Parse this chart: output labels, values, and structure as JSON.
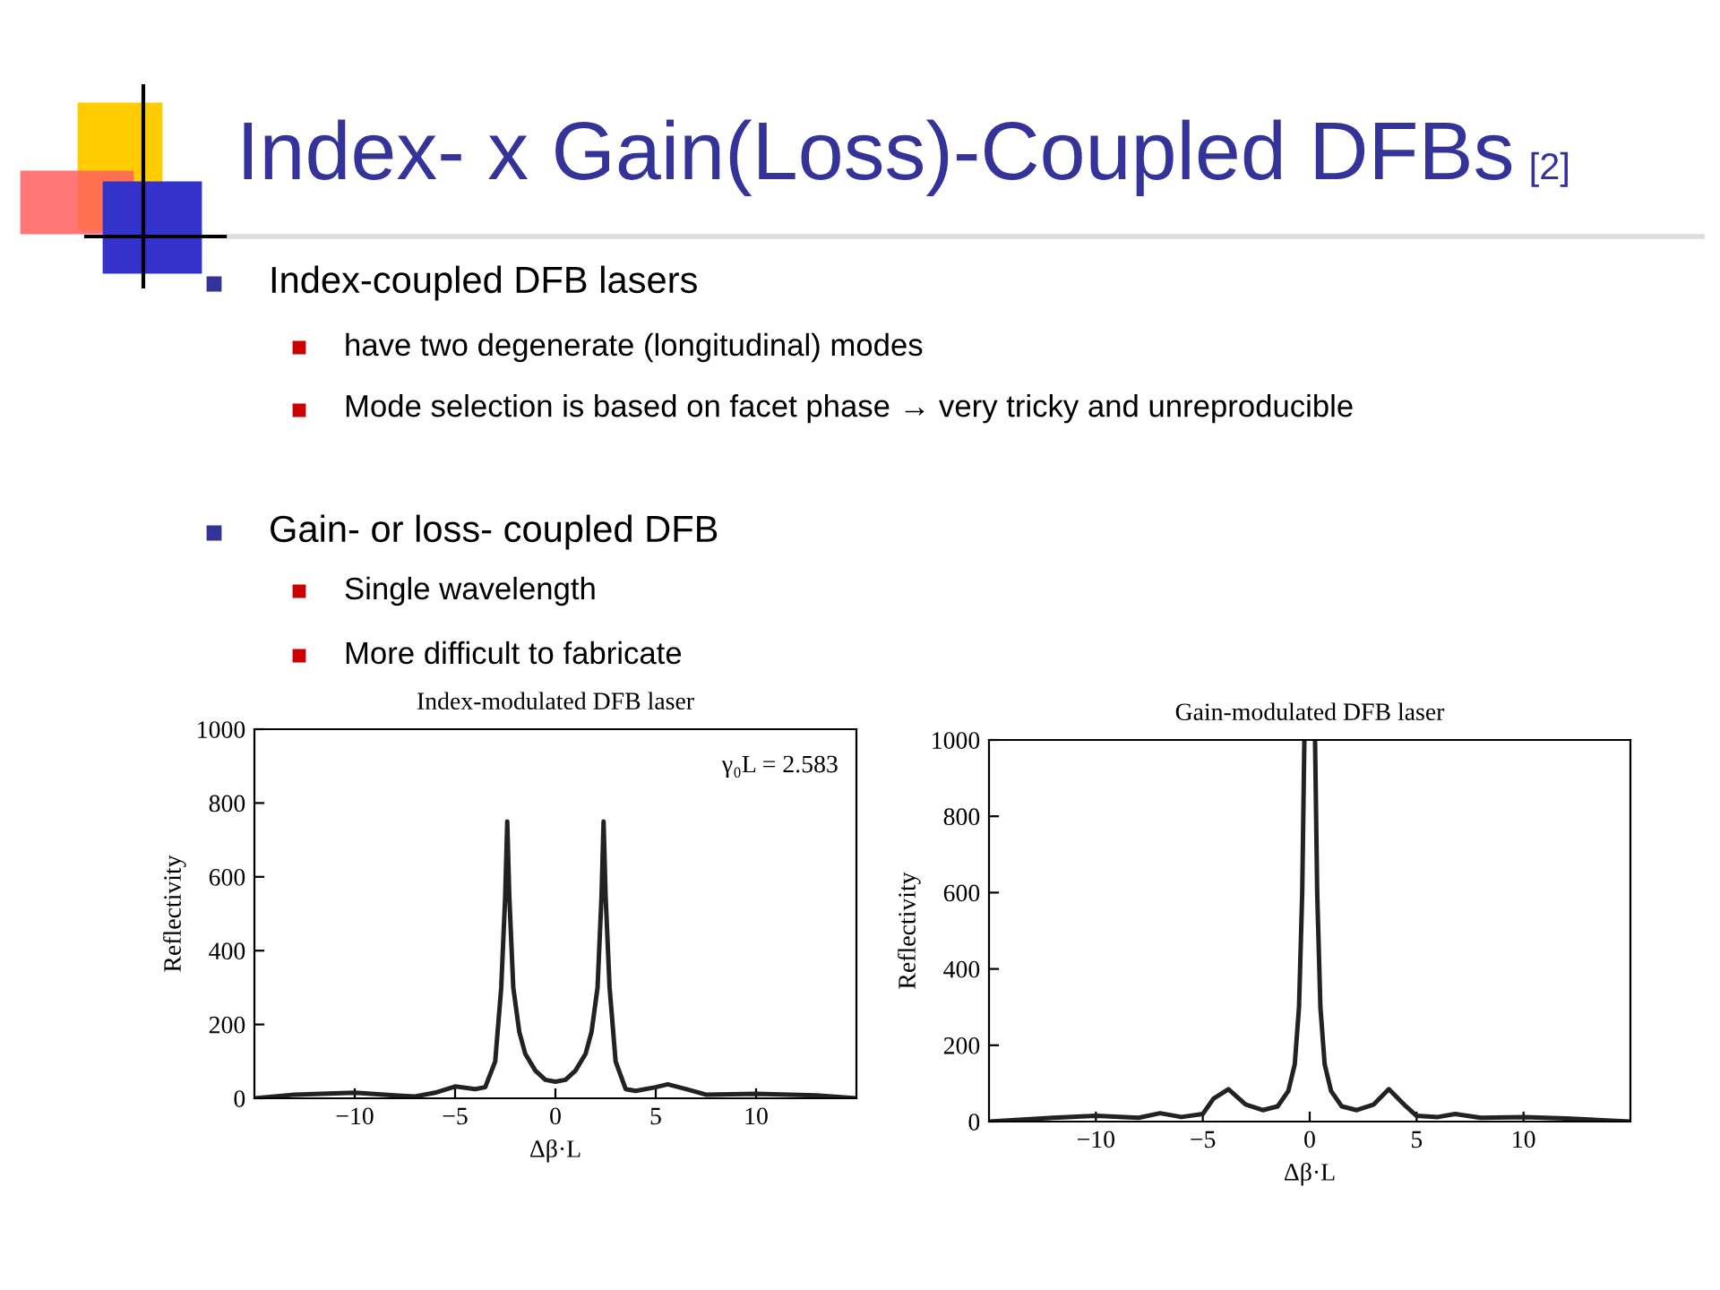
{
  "chart_data": [
    {
      "type": "other",
      "title": "Index- x Gain(Loss)-Coupled DFBs",
      "subtitle": "[2]",
      "annotations": [
        "Index-coupled DFB lasers",
        "have two degenerate (longitudinal) modes",
        "Mode selection is based on facet phase → very tricky and unreproducible",
        "Gain- or loss- coupled DFB",
        "Single wavelength",
        "More difficult to fabricate"
      ]
    },
    {
      "type": "line",
      "title": "Index-modulated DFB laser",
      "xlabel": "Δβ·L",
      "ylabel": "Reflectivity",
      "annotations": [
        "γ₀L = 2.583"
      ],
      "xlim": [
        -15,
        15
      ],
      "xticks": [
        -10,
        -5,
        0,
        5,
        10
      ],
      "ylim": [
        0,
        1000
      ],
      "yticks": [
        0,
        200,
        400,
        600,
        800,
        1000
      ],
      "grid": false,
      "marker": "none",
      "line_style": "solid",
      "x": [
        -15,
        -13,
        -10,
        -8,
        -7,
        -6,
        -5,
        -4,
        -3.5,
        -3,
        -2.7,
        -2.5,
        -2.4,
        -2.3,
        -2.1,
        -1.8,
        -1.5,
        -1,
        -0.5,
        0,
        0.5,
        1,
        1.5,
        1.8,
        2.1,
        2.3,
        2.4,
        2.5,
        2.7,
        3,
        3.5,
        4,
        5,
        5.6,
        6.5,
        7.5,
        10,
        13,
        15
      ],
      "series": [
        {
          "color": "#222222",
          "values": [
            0,
            10,
            15,
            8,
            5,
            15,
            32,
            25,
            30,
            100,
            300,
            550,
            750,
            550,
            300,
            180,
            120,
            75,
            50,
            45,
            50,
            75,
            120,
            180,
            300,
            550,
            750,
            550,
            300,
            100,
            25,
            20,
            30,
            38,
            25,
            10,
            12,
            8,
            0
          ]
        }
      ]
    },
    {
      "type": "line",
      "title": "Gain-modulated DFB laser",
      "xlabel": "Δβ·L",
      "ylabel": "Reflectivity",
      "xlim": [
        -15,
        15
      ],
      "xticks": [
        -10,
        -5,
        0,
        5,
        10
      ],
      "ylim": [
        0,
        1000
      ],
      "yticks": [
        0,
        200,
        400,
        600,
        800,
        1000
      ],
      "grid": false,
      "marker": "none",
      "line_style": "solid",
      "x": [
        -15,
        -12,
        -10,
        -8,
        -7,
        -6,
        -5,
        -4.5,
        -3.8,
        -3,
        -2.2,
        -1.5,
        -1,
        -0.7,
        -0.5,
        -0.35,
        -0.25,
        0,
        0.25,
        0.35,
        0.5,
        0.7,
        1,
        1.5,
        2.2,
        3,
        3.7,
        4.5,
        5,
        6,
        6.8,
        8,
        10,
        12,
        15
      ],
      "series": [
        {
          "color": "#222222",
          "values": [
            0,
            10,
            15,
            10,
            22,
            12,
            20,
            60,
            85,
            45,
            30,
            40,
            80,
            150,
            300,
            600,
            1000,
            null,
            1000,
            600,
            300,
            150,
            80,
            40,
            30,
            45,
            85,
            40,
            15,
            12,
            20,
            10,
            12,
            8,
            0
          ]
        }
      ]
    }
  ]
}
